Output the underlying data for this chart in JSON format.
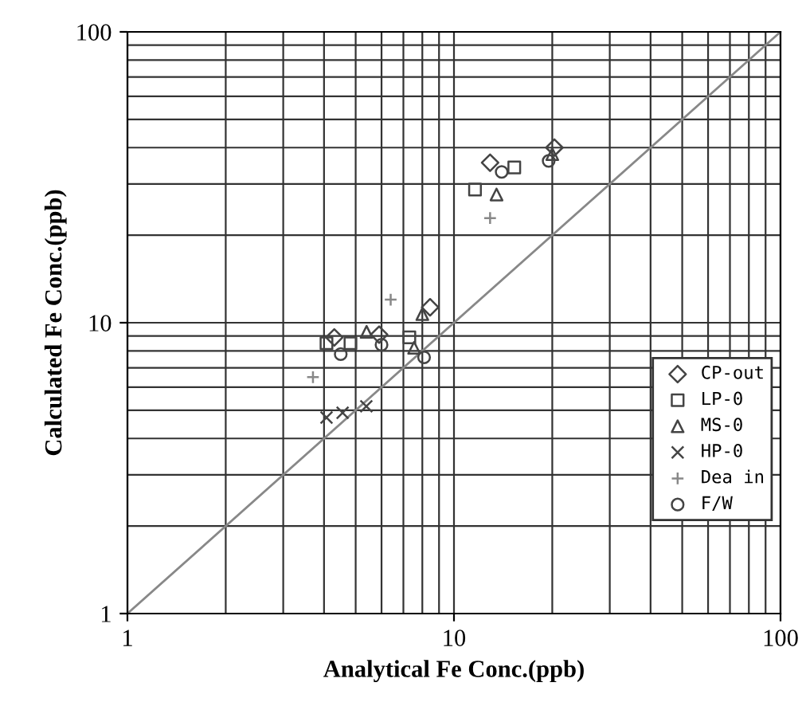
{
  "chart_data": {
    "type": "scatter",
    "xlabel": "Analytical Fe Conc.(ppb)",
    "ylabel": "Calculated Fe Conc.(ppb)",
    "log": "xy",
    "xlim": [
      1,
      100
    ],
    "ylim": [
      1,
      100
    ],
    "xticks": [
      1,
      10,
      100
    ],
    "yticks": [
      1,
      10,
      100
    ],
    "grid": true,
    "legend": "right",
    "series": [
      {
        "name": "CP-out",
        "color": "#444444",
        "marker": "diamond",
        "x": [
          12.9,
          20.3,
          4.3,
          5.9,
          8.45
        ],
        "values": [
          35.5,
          40,
          8.9,
          9.1,
          11.3
        ]
      },
      {
        "name": "LP-0",
        "color": "#444444",
        "marker": "square",
        "x": [
          11.6,
          15.3,
          4.07,
          4.82,
          7.3
        ],
        "values": [
          28.7,
          34.2,
          8.5,
          8.5,
          8.9
        ]
      },
      {
        "name": "MS-0",
        "color": "#444444",
        "marker": "triangle",
        "x": [
          13.5,
          20,
          5.4,
          7.55,
          8
        ],
        "values": [
          27.6,
          38,
          9.3,
          8.2,
          10.7
        ]
      },
      {
        "name": "HP-0",
        "color": "#444444",
        "marker": "cross",
        "x": [
          4.07,
          4.56,
          5.39
        ],
        "values": [
          4.72,
          4.9,
          5.16
        ]
      },
      {
        "name": "Dea in",
        "color": "#888888",
        "marker": "plus",
        "x": [
          12.9,
          3.7,
          6.4
        ],
        "values": [
          22.9,
          6.5,
          12
        ]
      },
      {
        "name": "F/W",
        "color": "#444444",
        "marker": "circle",
        "x": [
          14,
          4.5,
          6,
          8.1,
          19.5
        ],
        "values": [
          33,
          7.8,
          8.4,
          7.6,
          36
        ]
      },
      {
        "type": "line",
        "color": "#888888",
        "marker": "none",
        "x": [
          1,
          100
        ],
        "values": [
          1,
          100
        ]
      }
    ]
  }
}
